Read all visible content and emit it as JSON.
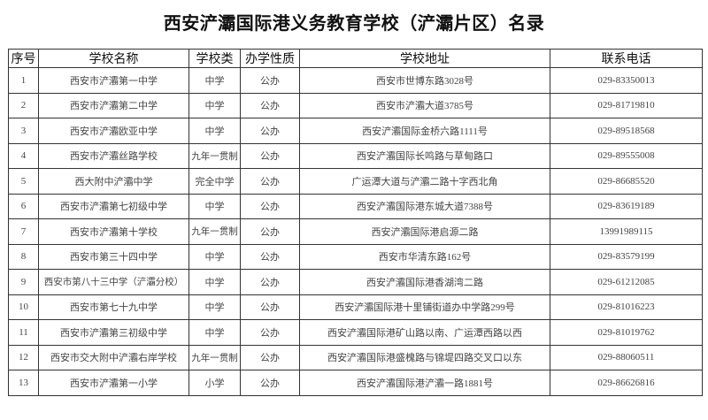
{
  "title": "西安浐灞国际港义务教育学校（浐灞片区）名录",
  "headers": [
    "序号",
    "学校名称",
    "学校类",
    "办学性质",
    "学校地址",
    "联系电话"
  ],
  "rows": [
    [
      "1",
      "西安市浐灞第一中学",
      "中学",
      "公办",
      "西安市世博东路3028号",
      "029-83350013"
    ],
    [
      "2",
      "西安市浐灞第二中学",
      "中学",
      "公办",
      "西安市浐灞大道3785号",
      "029-81719810"
    ],
    [
      "3",
      "西安市浐灞欧亚中学",
      "中学",
      "公办",
      "西安浐灞国际金桥六路1111号",
      "029-89518568"
    ],
    [
      "4",
      "西安市浐灞丝路学校",
      "九年一贯制",
      "公办",
      "西安浐灞国际长鸣路与草甸路口",
      "029-89555008"
    ],
    [
      "5",
      "西大附中浐灞中学",
      "完全中学",
      "公办",
      "广运潭大道与浐灞二路十字西北角",
      "029-86685520"
    ],
    [
      "6",
      "西安市浐灞第七初级中学",
      "中学",
      "公办",
      "西安浐灞国际港东城大道7388号",
      "029-83619189"
    ],
    [
      "7",
      "西安市浐灞第十学校",
      "九年一贯制",
      "公办",
      "西安浐灞国际港启源二路",
      "13991989115"
    ],
    [
      "8",
      "西安市第三十四中学",
      "中学",
      "公办",
      "西安市华清东路162号",
      "029-83579199"
    ],
    [
      "9",
      "西安市第八十三中学（浐灞分校）",
      "中学",
      "公办",
      "西安浐灞国际港香湖湾二路",
      "029-61212085"
    ],
    [
      "10",
      "西安市第七十九中学",
      "中学",
      "公办",
      "西安浐灞国际港十里铺街道办中学路299号",
      "029-81016223"
    ],
    [
      "11",
      "西安市浐灞第三初级中学",
      "中学",
      "公办",
      "西安浐灞国际港矿山路以南、广运潭西路以西",
      "029-81019762"
    ],
    [
      "12",
      "西安市交大附中浐灞右岸学校",
      "九年一贯制",
      "公办",
      "西安浐灞国际港盛槐路与锦堤四路交叉口以东",
      "029-88060511"
    ],
    [
      "13",
      "西安市浐灞第一小学",
      "小学",
      "公办",
      "西安浐灞国际港浐灞一路1881号",
      "029-86626816"
    ]
  ]
}
